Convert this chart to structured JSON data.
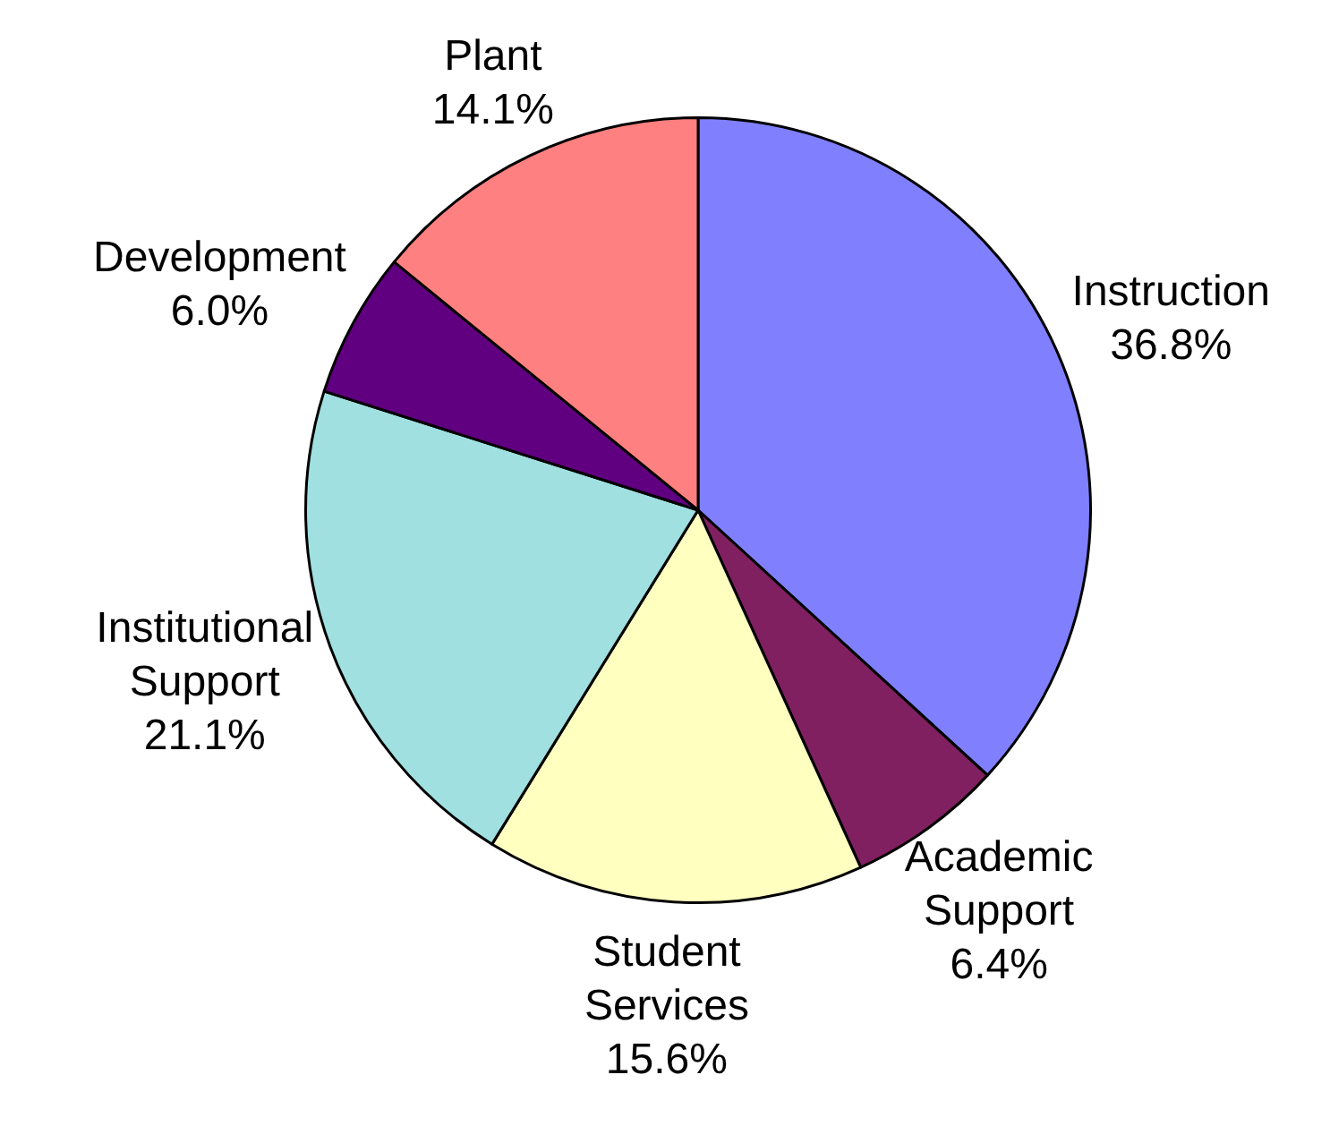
{
  "chart_data": {
    "type": "pie",
    "categories": [
      "Instruction",
      "Academic Support",
      "Student Services",
      "Institutional Support",
      "Development",
      "Plant"
    ],
    "values": [
      36.8,
      6.4,
      15.6,
      21.1,
      6.0,
      14.1
    ],
    "value_labels": [
      "36.8%",
      "6.4%",
      "15.6%",
      "21.1%",
      "6.0%",
      "14.1%"
    ],
    "colors": [
      "#8080ff",
      "#802060",
      "#ffffc0",
      "#a0e0e0",
      "#600080",
      "#ff8080"
    ],
    "legend": false
  }
}
